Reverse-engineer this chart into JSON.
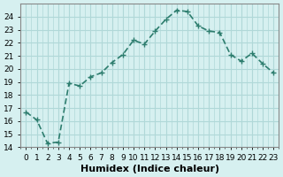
{
  "x": [
    0,
    1,
    2,
    3,
    4,
    5,
    6,
    7,
    8,
    9,
    10,
    11,
    12,
    13,
    14,
    15,
    16,
    17,
    18,
    19,
    20,
    21,
    22,
    23
  ],
  "y": [
    16.7,
    16.1,
    14.3,
    14.4,
    18.9,
    18.7,
    19.4,
    19.7,
    20.5,
    21.1,
    22.2,
    21.9,
    22.9,
    23.8,
    24.5,
    24.4,
    23.3,
    22.9,
    22.8,
    21.1,
    20.6,
    21.2,
    20.4,
    19.7
  ],
  "line_color": "#2d7d6e",
  "marker": "+",
  "marker_size": 5,
  "bg_color": "#d6f0f0",
  "grid_color": "#b0d8d8",
  "xlabel": "Humidex (Indice chaleur)",
  "ylim": [
    14,
    25
  ],
  "yticks": [
    14,
    15,
    16,
    17,
    18,
    19,
    20,
    21,
    22,
    23,
    24
  ],
  "xticks": [
    0,
    1,
    2,
    3,
    4,
    5,
    6,
    7,
    8,
    9,
    10,
    11,
    12,
    13,
    14,
    15,
    16,
    17,
    18,
    19,
    20,
    21,
    22,
    23
  ],
  "tick_label_fontsize": 6.5,
  "xlabel_fontsize": 8,
  "line_width": 1.2
}
